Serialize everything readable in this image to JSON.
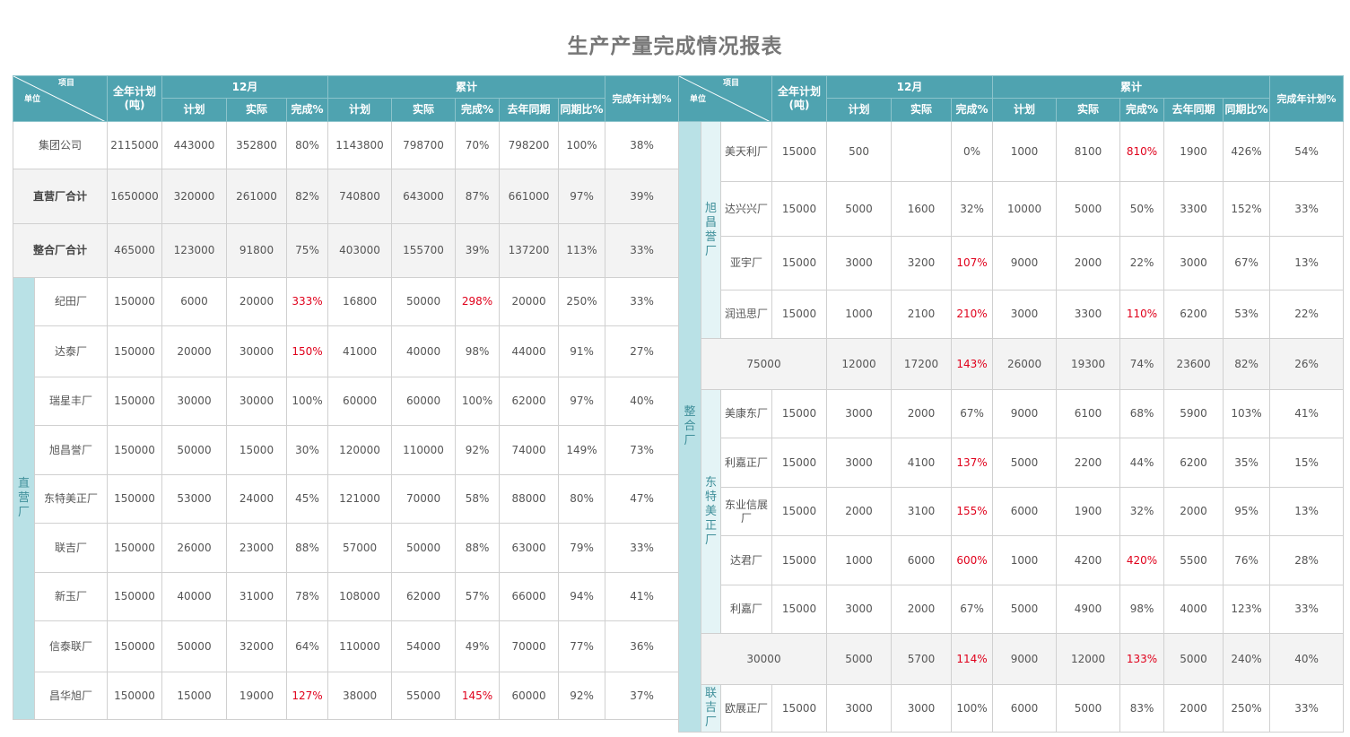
{
  "title": "生产产量完成情况报表",
  "header": {
    "item": "项目",
    "unit": "单位",
    "annual_plan": "全年计划(吨)",
    "dec": "12月",
    "cum": "累计",
    "plan": "计划",
    "actual": "实际",
    "rate": "完成%",
    "last_year": "去年同期",
    "yoy": "同期比%",
    "annual_rate": "完成年计划%"
  },
  "groups": {
    "direct": "直营厂",
    "integrated": "整合厂",
    "xuchangyu": "旭昌誉厂",
    "dongte": "东特美正厂",
    "lianji": "联吉厂"
  },
  "left_rows": [
    {
      "name": "集团公司",
      "annual": "2115000",
      "m_plan": "443000",
      "m_actual": "352800",
      "m_rate": "80%",
      "c_plan": "1143800",
      "c_actual": "798700",
      "c_rate": "70%",
      "last": "798200",
      "yoy": "100%",
      "annual_rate": "38%"
    },
    {
      "name": "直营厂合计",
      "annual": "1650000",
      "m_plan": "320000",
      "m_actual": "261000",
      "m_rate": "82%",
      "c_plan": "740800",
      "c_actual": "643000",
      "c_rate": "87%",
      "last": "661000",
      "yoy": "97%",
      "annual_rate": "39%"
    },
    {
      "name": "整合厂合计",
      "annual": "465000",
      "m_plan": "123000",
      "m_actual": "91800",
      "m_rate": "75%",
      "c_plan": "403000",
      "c_actual": "155700",
      "c_rate": "39%",
      "last": "137200",
      "yoy": "113%",
      "annual_rate": "33%"
    },
    {
      "name": "纪田厂",
      "annual": "150000",
      "m_plan": "6000",
      "m_actual": "20000",
      "m_rate": "333%",
      "c_plan": "16800",
      "c_actual": "50000",
      "c_rate": "298%",
      "last": "20000",
      "yoy": "250%",
      "annual_rate": "33%"
    },
    {
      "name": "达泰厂",
      "annual": "150000",
      "m_plan": "20000",
      "m_actual": "30000",
      "m_rate": "150%",
      "c_plan": "41000",
      "c_actual": "40000",
      "c_rate": "98%",
      "last": "44000",
      "yoy": "91%",
      "annual_rate": "27%"
    },
    {
      "name": "瑞星丰厂",
      "annual": "150000",
      "m_plan": "30000",
      "m_actual": "30000",
      "m_rate": "100%",
      "c_plan": "60000",
      "c_actual": "60000",
      "c_rate": "100%",
      "last": "62000",
      "yoy": "97%",
      "annual_rate": "40%"
    },
    {
      "name": "旭昌誉厂",
      "annual": "150000",
      "m_plan": "50000",
      "m_actual": "15000",
      "m_rate": "30%",
      "c_plan": "120000",
      "c_actual": "110000",
      "c_rate": "92%",
      "last": "74000",
      "yoy": "149%",
      "annual_rate": "73%"
    },
    {
      "name": "东特美正厂",
      "annual": "150000",
      "m_plan": "53000",
      "m_actual": "24000",
      "m_rate": "45%",
      "c_plan": "121000",
      "c_actual": "70000",
      "c_rate": "58%",
      "last": "88000",
      "yoy": "80%",
      "annual_rate": "47%"
    },
    {
      "name": "联吉厂",
      "annual": "150000",
      "m_plan": "26000",
      "m_actual": "23000",
      "m_rate": "88%",
      "c_plan": "57000",
      "c_actual": "50000",
      "c_rate": "88%",
      "last": "63000",
      "yoy": "79%",
      "annual_rate": "33%"
    },
    {
      "name": "新玉厂",
      "annual": "150000",
      "m_plan": "40000",
      "m_actual": "31000",
      "m_rate": "78%",
      "c_plan": "108000",
      "c_actual": "62000",
      "c_rate": "57%",
      "last": "66000",
      "yoy": "94%",
      "annual_rate": "41%"
    },
    {
      "name": "信泰联厂",
      "annual": "150000",
      "m_plan": "50000",
      "m_actual": "32000",
      "m_rate": "64%",
      "c_plan": "110000",
      "c_actual": "54000",
      "c_rate": "49%",
      "last": "70000",
      "yoy": "77%",
      "annual_rate": "36%"
    },
    {
      "name": "昌华旭厂",
      "annual": "150000",
      "m_plan": "15000",
      "m_actual": "19000",
      "m_rate": "127%",
      "c_plan": "38000",
      "c_actual": "55000",
      "c_rate": "145%",
      "last": "60000",
      "yoy": "92%",
      "annual_rate": "37%"
    }
  ],
  "right_rows": [
    {
      "name": "美天利厂",
      "annual": "15000",
      "m_plan": "500",
      "m_actual": "",
      "m_rate": "0%",
      "c_plan": "1000",
      "c_actual": "8100",
      "c_rate": "810%",
      "last": "1900",
      "yoy": "426%",
      "annual_rate": "54%"
    },
    {
      "name": "达兴兴厂",
      "annual": "15000",
      "m_plan": "5000",
      "m_actual": "1600",
      "m_rate": "32%",
      "c_plan": "10000",
      "c_actual": "5000",
      "c_rate": "50%",
      "last": "3300",
      "yoy": "152%",
      "annual_rate": "33%"
    },
    {
      "name": "亚宇厂",
      "annual": "15000",
      "m_plan": "3000",
      "m_actual": "3200",
      "m_rate": "107%",
      "c_plan": "9000",
      "c_actual": "2000",
      "c_rate": "22%",
      "last": "3000",
      "yoy": "67%",
      "annual_rate": "13%"
    },
    {
      "name": "润迅思厂",
      "annual": "15000",
      "m_plan": "1000",
      "m_actual": "2100",
      "m_rate": "210%",
      "c_plan": "3000",
      "c_actual": "3300",
      "c_rate": "110%",
      "last": "6200",
      "yoy": "53%",
      "annual_rate": "22%"
    },
    {
      "name": "",
      "annual": "75000",
      "m_plan": "12000",
      "m_actual": "17200",
      "m_rate": "143%",
      "c_plan": "26000",
      "c_actual": "19300",
      "c_rate": "74%",
      "last": "23600",
      "yoy": "82%",
      "annual_rate": "26%"
    },
    {
      "name": "美康东厂",
      "annual": "15000",
      "m_plan": "3000",
      "m_actual": "2000",
      "m_rate": "67%",
      "c_plan": "9000",
      "c_actual": "6100",
      "c_rate": "68%",
      "last": "5900",
      "yoy": "103%",
      "annual_rate": "41%"
    },
    {
      "name": "利嘉正厂",
      "annual": "15000",
      "m_plan": "3000",
      "m_actual": "4100",
      "m_rate": "137%",
      "c_plan": "5000",
      "c_actual": "2200",
      "c_rate": "44%",
      "last": "6200",
      "yoy": "35%",
      "annual_rate": "15%"
    },
    {
      "name": "东业信展厂",
      "annual": "15000",
      "m_plan": "2000",
      "m_actual": "3100",
      "m_rate": "155%",
      "c_plan": "6000",
      "c_actual": "1900",
      "c_rate": "32%",
      "last": "2000",
      "yoy": "95%",
      "annual_rate": "13%"
    },
    {
      "name": "达君厂",
      "annual": "15000",
      "m_plan": "1000",
      "m_actual": "6000",
      "m_rate": "600%",
      "c_plan": "1000",
      "c_actual": "4200",
      "c_rate": "420%",
      "last": "5500",
      "yoy": "76%",
      "annual_rate": "28%"
    },
    {
      "name": "利嘉厂",
      "annual": "15000",
      "m_plan": "3000",
      "m_actual": "2000",
      "m_rate": "67%",
      "c_plan": "5000",
      "c_actual": "4900",
      "c_rate": "98%",
      "last": "4000",
      "yoy": "123%",
      "annual_rate": "33%"
    },
    {
      "name": "",
      "annual": "30000",
      "m_plan": "5000",
      "m_actual": "5700",
      "m_rate": "114%",
      "c_plan": "9000",
      "c_actual": "12000",
      "c_rate": "133%",
      "last": "5000",
      "yoy": "240%",
      "annual_rate": "40%"
    },
    {
      "name": "欧展正厂",
      "annual": "15000",
      "m_plan": "3000",
      "m_actual": "3000",
      "m_rate": "100%",
      "c_plan": "6000",
      "c_actual": "5000",
      "c_rate": "83%",
      "last": "2000",
      "yoy": "250%",
      "annual_rate": "33%"
    }
  ]
}
